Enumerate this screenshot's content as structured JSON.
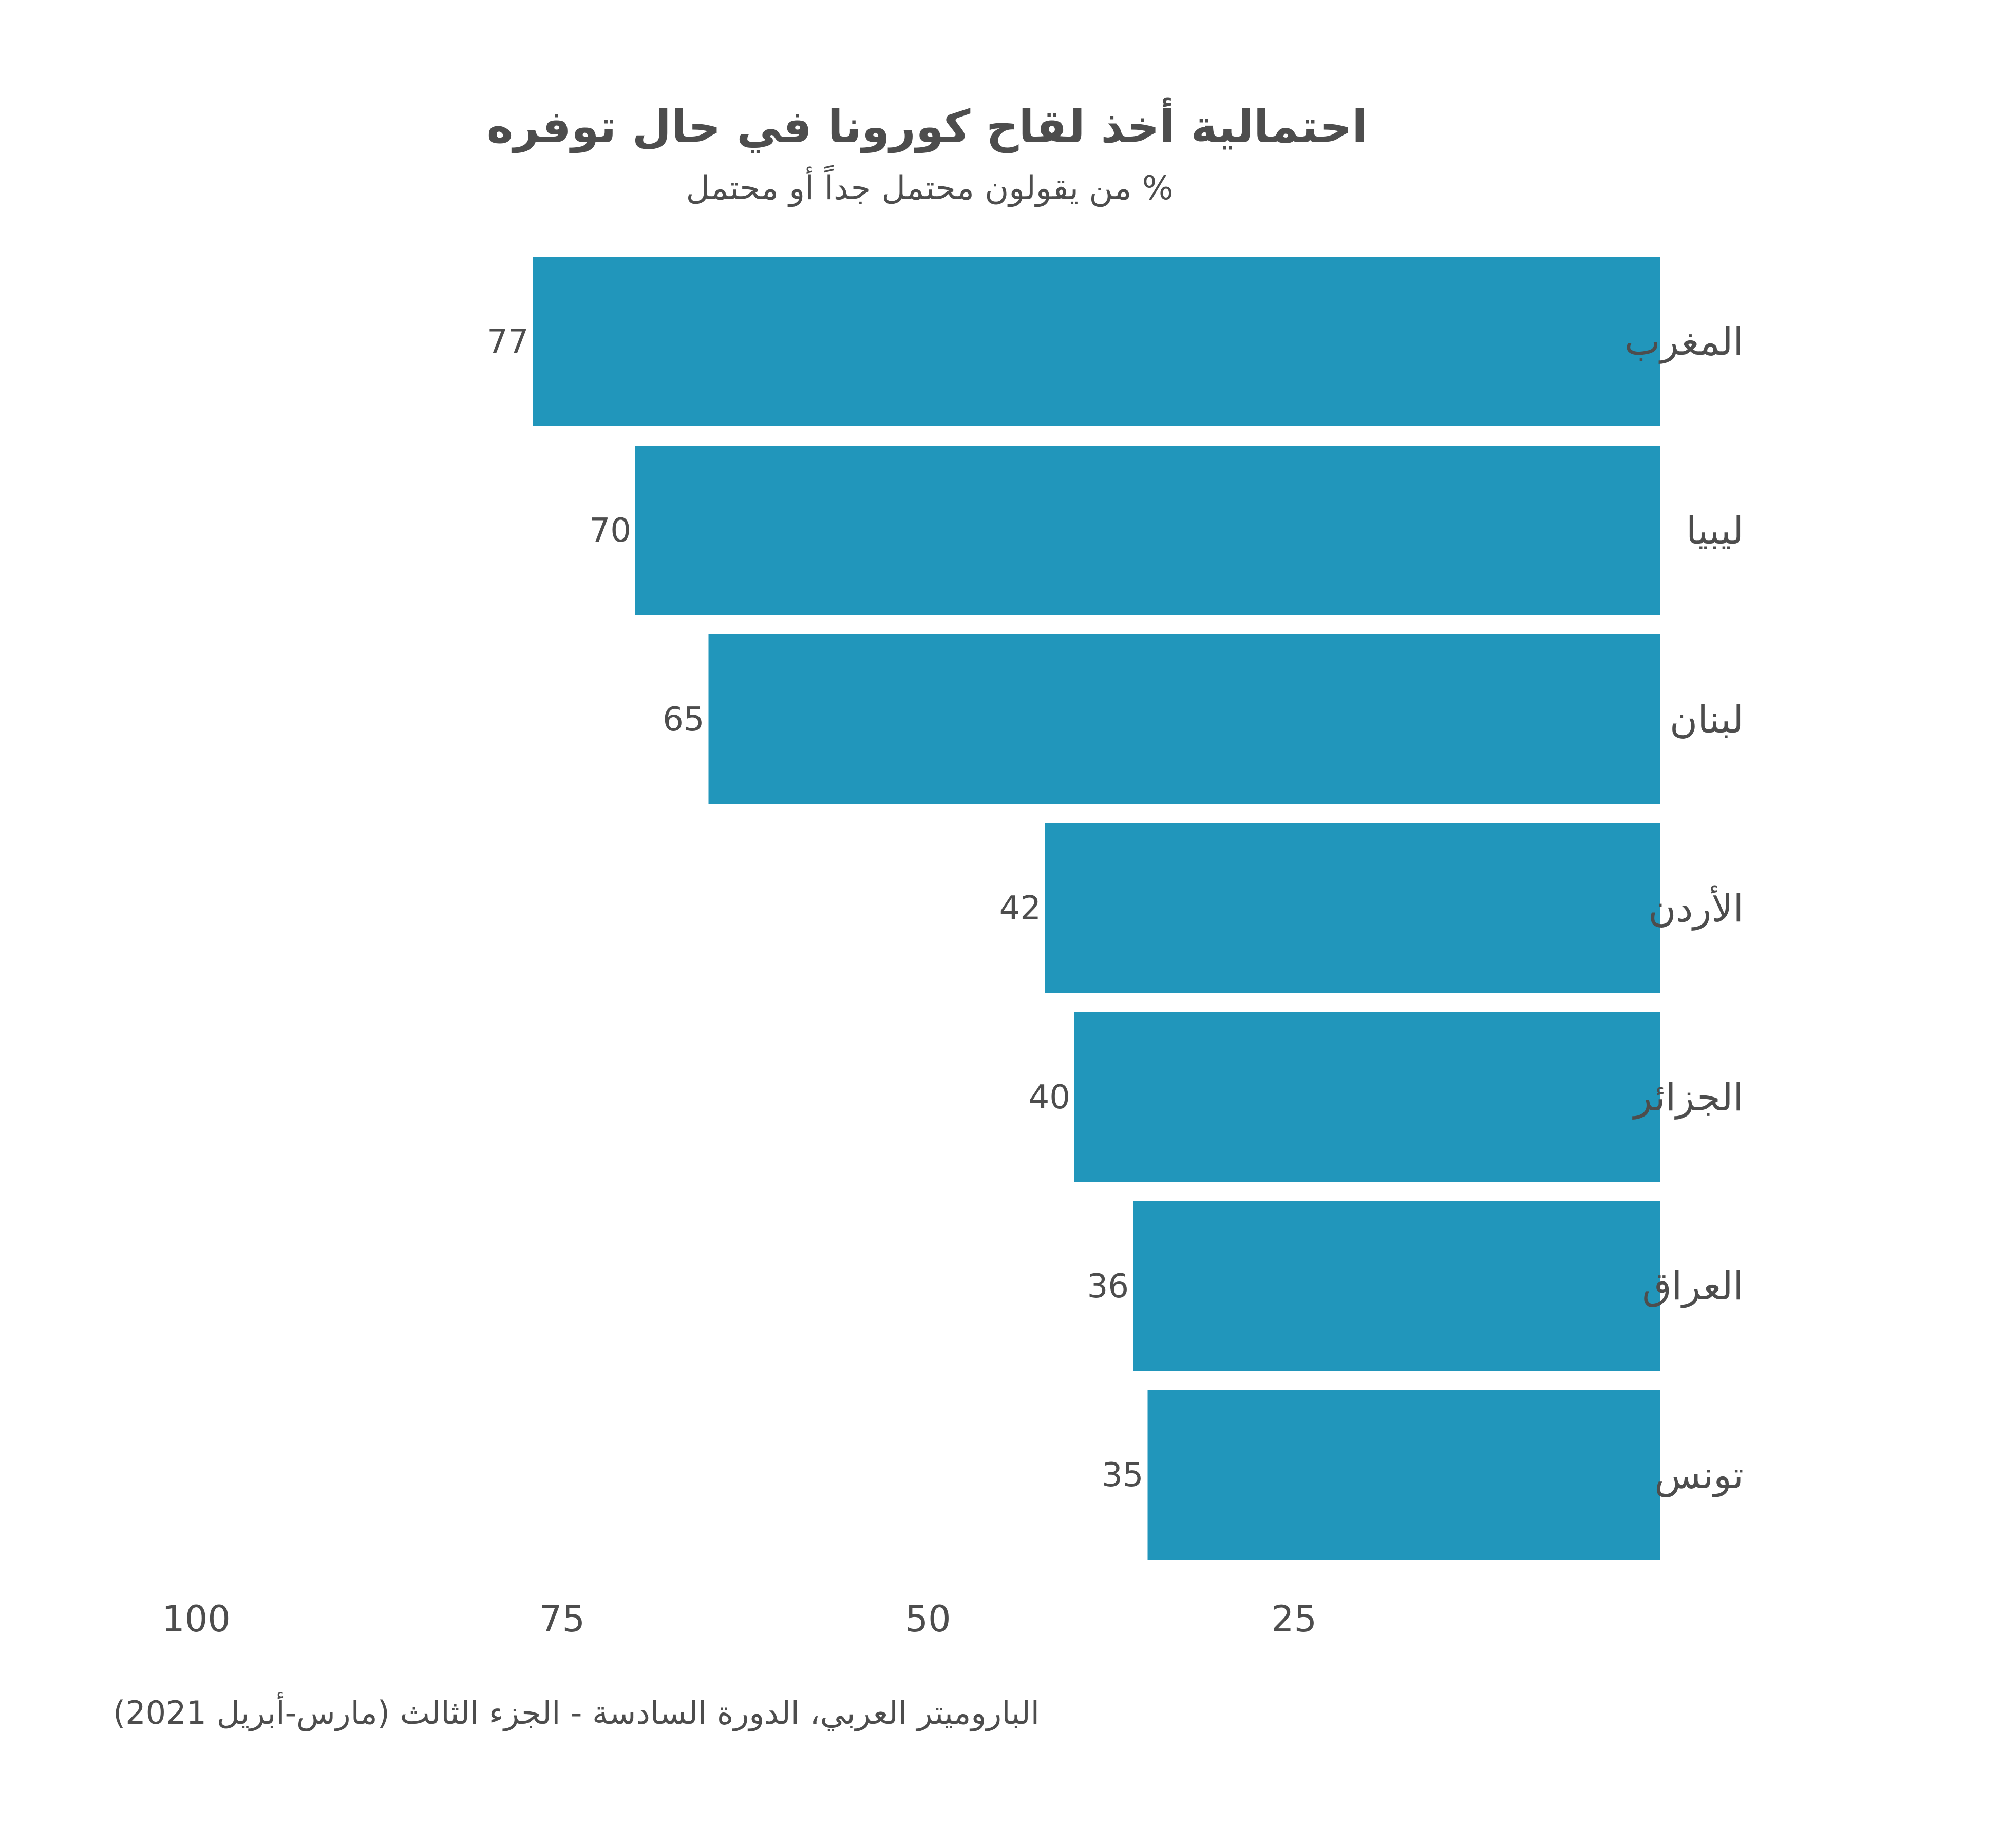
{
  "title": "احتمالية أخذ لقاح كورونا في حال توفره",
  "subtitle": "% من يقولون محتمل جداً أو محتمل",
  "source": "الباروميتر العربي، الدورة السادسة - الجزء الثالث (مارس-أبريل 2021)",
  "chart_data": {
    "type": "bar",
    "orientation": "horizontal",
    "x_direction": "reversed",
    "title": "احتمالية أخذ لقاح كورونا في حال توفره",
    "subtitle": "% من يقولون محتمل جداً أو محتمل",
    "categories": [
      "المغرب",
      "ليبيا",
      "لبنان",
      "الأردن",
      "الجزائر",
      "العراق",
      "تونس"
    ],
    "values": [
      77,
      70,
      65,
      42,
      40,
      36,
      35
    ],
    "xlim": [
      0,
      100
    ],
    "x_ticks": [
      "100",
      "75",
      "50",
      "25"
    ],
    "x_tick_values": [
      100,
      75,
      50,
      25
    ],
    "bar_color": "#2196bb",
    "grid": false,
    "legend": "none"
  }
}
